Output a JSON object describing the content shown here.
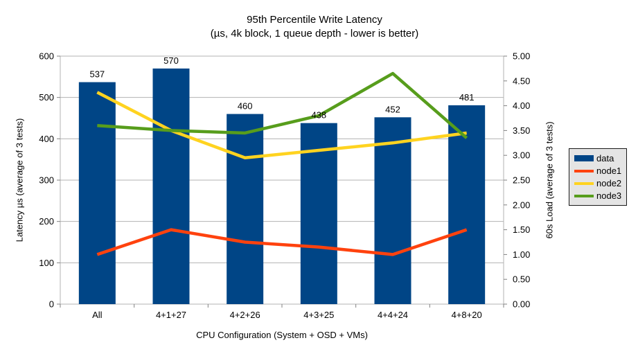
{
  "title": "95th Percentile Write Latency",
  "subtitle": "(µs, 4k block, 1 queue depth - lower is better)",
  "axes": {
    "left": {
      "title": "Latency µs (average of 3 tests)"
    },
    "right": {
      "title": "60s Load (average of 3 tests)"
    },
    "x": {
      "title": "CPU Configuration (System + OSD + VMs)"
    }
  },
  "legend": {
    "items": [
      {
        "label": "data",
        "type": "bar",
        "color": "#004586"
      },
      {
        "label": "node1",
        "type": "line",
        "color": "#FF420E"
      },
      {
        "label": "node2",
        "type": "line",
        "color": "#FFD320"
      },
      {
        "label": "node3",
        "type": "line",
        "color": "#579D1C"
      }
    ]
  },
  "chart_data": {
    "type": "bar",
    "title": "95th Percentile Write Latency (µs, 4k block, 1 queue depth - lower is better)",
    "categories": [
      "All",
      "4+1+27",
      "4+2+26",
      "4+3+25",
      "4+4+24",
      "4+8+20"
    ],
    "series": [
      {
        "name": "data",
        "type": "bar",
        "axis": "left",
        "color": "#004586",
        "values": [
          537,
          570,
          460,
          438,
          452,
          481
        ],
        "labels_shown": true
      },
      {
        "name": "node1",
        "type": "line",
        "axis": "right",
        "color": "#FF420E",
        "values": [
          1.0,
          1.5,
          1.25,
          1.15,
          1.0,
          1.5
        ]
      },
      {
        "name": "node2",
        "type": "line",
        "axis": "right",
        "color": "#FFD320",
        "values": [
          4.27,
          3.5,
          2.95,
          3.1,
          3.25,
          3.45
        ]
      },
      {
        "name": "node3",
        "type": "line",
        "axis": "right",
        "color": "#579D1C",
        "values": [
          3.6,
          3.5,
          3.45,
          3.8,
          4.65,
          3.35
        ]
      }
    ],
    "xlabel": "CPU Configuration (System + OSD + VMs)",
    "ylabel_left": "Latency µs (average of 3 tests)",
    "ylabel_right": "60s Load (average of 3 tests)",
    "ylim_left": [
      0,
      600
    ],
    "ytick_step_left": 100,
    "ylim_right": [
      0,
      5
    ],
    "ytick_step_right": 0.5,
    "grid": "horizontal",
    "legend_position": "right"
  },
  "colors": {
    "background": "#ffffff",
    "gridline": "#b3b3b3",
    "plot_border": "#b3b3b3",
    "tick": "#808080",
    "text": "#000000",
    "legend_background": "#e4e4e4",
    "legend_border": "#1a1a1a"
  }
}
